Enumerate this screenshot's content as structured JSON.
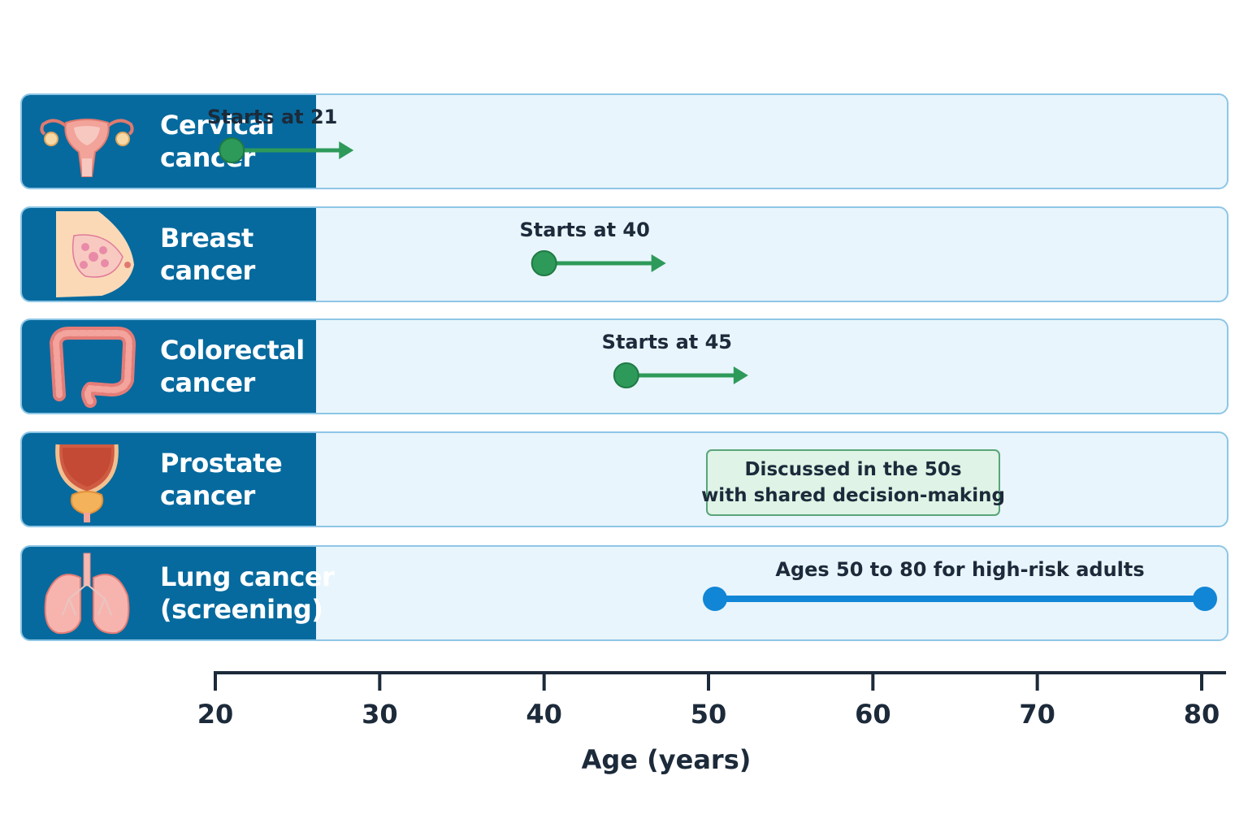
{
  "chart_data": {
    "type": "timeline",
    "x_axis": {
      "title": "Age (years)",
      "range": [
        20,
        80
      ],
      "ticks": [
        20,
        30,
        40,
        50,
        60,
        70,
        80
      ]
    },
    "rows": [
      {
        "id": "cervical",
        "label_lines": [
          "Cervical",
          "cancer"
        ],
        "icon": "uterus-icon",
        "mark": {
          "kind": "start-arrow",
          "start": 21,
          "label": "Starts at 21",
          "color": "#2e9a5a"
        }
      },
      {
        "id": "breast",
        "label_lines": [
          "Breast",
          "cancer"
        ],
        "icon": "breast-icon",
        "mark": {
          "kind": "start-arrow",
          "start": 40,
          "label": "Starts at 40",
          "color": "#2e9a5a"
        }
      },
      {
        "id": "colorectal",
        "label_lines": [
          "Colorectal",
          "cancer"
        ],
        "icon": "colon-icon",
        "mark": {
          "kind": "start-arrow",
          "start": 45,
          "label": "Starts at 45",
          "color": "#2e9a5a"
        }
      },
      {
        "id": "prostate",
        "label_lines": [
          "Prostate",
          "cancer"
        ],
        "icon": "prostate-icon",
        "mark": {
          "kind": "note-box",
          "start": 50,
          "end": 59,
          "lines": [
            "Discussed in the 50s",
            "with shared decision-making"
          ]
        }
      },
      {
        "id": "lung",
        "label_lines": [
          "Lung cancer",
          "(screening)"
        ],
        "icon": "lungs-icon",
        "mark": {
          "kind": "range",
          "start": 50,
          "end": 80,
          "label": "Ages 50 to 80 for high-risk adults",
          "color": "#1186d6"
        }
      }
    ]
  }
}
